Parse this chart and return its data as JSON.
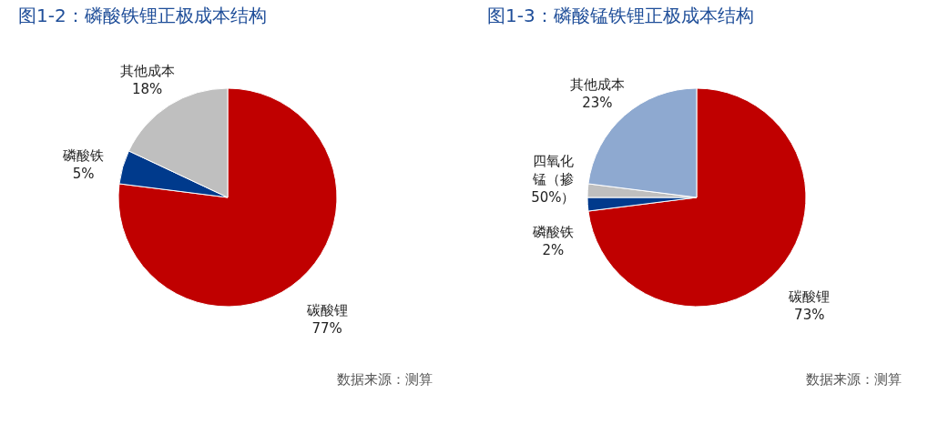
{
  "chart_data": [
    {
      "type": "pie",
      "title": "图1-2：磷酸铁锂正极成本结构",
      "categories": [
        "碳酸锂",
        "磷酸铁",
        "其他成本"
      ],
      "values": [
        77,
        5,
        18
      ],
      "colors": [
        "#c00000",
        "#003a8c",
        "#bfbfbf"
      ],
      "value_labels": [
        "77%",
        "5%",
        "18%"
      ],
      "annotations": [
        "数据来源：测算"
      ]
    },
    {
      "type": "pie",
      "title": "图1-3：磷酸锰铁锂正极成本结构",
      "categories": [
        "碳酸锂",
        "磷酸铁",
        "四氧化锰（掺50%）",
        "其他成本"
      ],
      "values": [
        73,
        2,
        2,
        23
      ],
      "colors": [
        "#c00000",
        "#003a8c",
        "#bfbfbf",
        "#8ea9d0"
      ],
      "value_labels": [
        "73%",
        "2%",
        null,
        "23%"
      ],
      "annotations": [
        "数据来源：测算"
      ]
    }
  ]
}
